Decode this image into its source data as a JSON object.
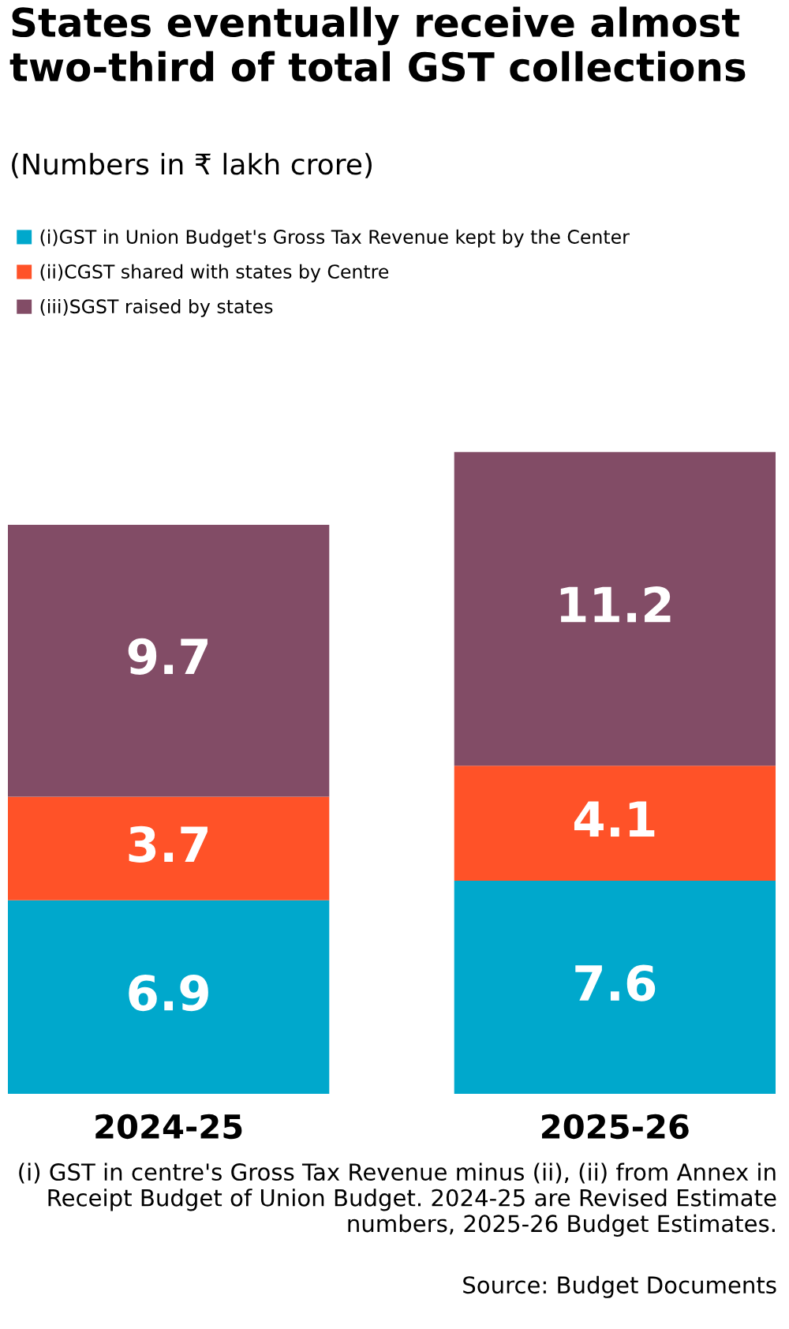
{
  "chart_data": {
    "type": "bar",
    "title": "States eventually receive almost two-third of total GST collections",
    "subtitle": "(Numbers in ₹ lakh crore)",
    "categories": [
      "2024-25",
      "2025-26"
    ],
    "stacked": true,
    "data_labels": true,
    "legend": "top left",
    "grid": false,
    "series": [
      {
        "name": "(i)GST in Union Budget's Gross Tax Revenue kept by the Center",
        "color": "#00a8cc",
        "values": [
          6.9,
          7.6
        ]
      },
      {
        "name": "(ii)CGST shared with states by Centre",
        "color": "#ff5228",
        "values": [
          3.7,
          4.1
        ]
      },
      {
        "name": "(iii)SGST raised by states",
        "color": "#824c66",
        "values": [
          9.7,
          11.2
        ]
      }
    ],
    "annotations": [
      "(i) GST in centre's Gross Tax Revenue minus (ii), (ii) from Annex in Receipt Budget of Union Budget. 2024-25 are Revised Estimate numbers, 2025-26 Budget Estimates.",
      "Source: Budget Documents"
    ]
  }
}
